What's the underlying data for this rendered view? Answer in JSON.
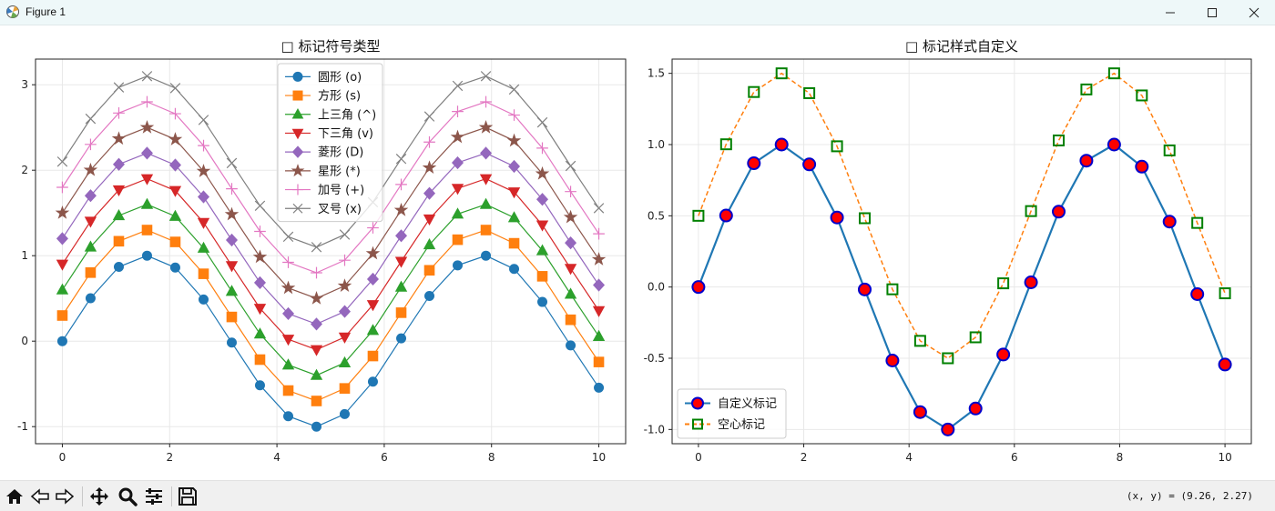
{
  "window": {
    "title": "Figure 1"
  },
  "toolbar": {
    "coords": "(x, y) = (9.26, 2.27)",
    "buttons": [
      "home",
      "back",
      "forward",
      "pan",
      "zoom",
      "configure",
      "save"
    ]
  },
  "colors": {
    "c0": "#1f77b4",
    "c1": "#ff7f0e",
    "c2": "#2ca02c",
    "c3": "#d62728",
    "c4": "#9467bd",
    "c5": "#8c564b",
    "c6": "#e377c2",
    "c7": "#7f7f7f",
    "custom_face": "#ff0000",
    "custom_edge": "#0000cc",
    "hollow_edge": "#008000",
    "grid": "#e8e8e8"
  },
  "chart_data": [
    {
      "type": "line",
      "title": "□ 标记符号类型",
      "x": [
        0,
        0.526,
        1.053,
        1.579,
        2.105,
        2.632,
        3.158,
        3.684,
        4.211,
        4.737,
        5.263,
        5.789,
        6.316,
        6.842,
        7.368,
        7.895,
        8.421,
        8.947,
        9.474,
        10
      ],
      "base": [
        0,
        0.502,
        0.869,
        1.0,
        0.861,
        0.488,
        -0.017,
        -0.516,
        -0.878,
        -1.0,
        -0.853,
        -0.474,
        0.033,
        0.529,
        0.887,
        1.0,
        0.845,
        0.459,
        -0.05,
        -0.544
      ],
      "xlim": [
        -0.5,
        10.5
      ],
      "ylim": [
        -1.2,
        3.3
      ],
      "xticks": [
        "0",
        "2",
        "4",
        "6",
        "8",
        "10"
      ],
      "xtick_values": [
        0,
        2,
        4,
        6,
        8,
        10
      ],
      "yticks": [
        "-1",
        "0",
        "1",
        "2",
        "3"
      ],
      "ytick_values": [
        -1,
        0,
        1,
        2,
        3
      ],
      "legend_loc": "upper center",
      "series": [
        {
          "name": "圆形 (o)",
          "marker": "o",
          "offset": 0.0,
          "color": "#1f77b4"
        },
        {
          "name": "方形 (s)",
          "marker": "s",
          "offset": 0.3,
          "color": "#ff7f0e"
        },
        {
          "name": "上三角 (^)",
          "marker": "^",
          "offset": 0.6,
          "color": "#2ca02c"
        },
        {
          "name": "下三角 (v)",
          "marker": "v",
          "offset": 0.9,
          "color": "#d62728"
        },
        {
          "name": "菱形 (D)",
          "marker": "D",
          "offset": 1.2,
          "color": "#9467bd"
        },
        {
          "name": "星形 (*)",
          "marker": "*",
          "offset": 1.5,
          "color": "#8c564b"
        },
        {
          "name": "加号 (+)",
          "marker": "+",
          "offset": 1.8,
          "color": "#e377c2"
        },
        {
          "name": "叉号 (x)",
          "marker": "x",
          "offset": 2.1,
          "color": "#7f7f7f"
        }
      ]
    },
    {
      "type": "line",
      "title": "□ 标记样式自定义",
      "x": [
        0,
        0.526,
        1.053,
        1.579,
        2.105,
        2.632,
        3.158,
        3.684,
        4.211,
        4.737,
        5.263,
        5.789,
        6.316,
        6.842,
        7.368,
        7.895,
        8.421,
        8.947,
        9.474,
        10
      ],
      "base": [
        0,
        0.502,
        0.869,
        1.0,
        0.861,
        0.488,
        -0.017,
        -0.516,
        -0.878,
        -1.0,
        -0.853,
        -0.474,
        0.033,
        0.529,
        0.887,
        1.0,
        0.845,
        0.459,
        -0.05,
        -0.544
      ],
      "xlim": [
        -0.5,
        10.5
      ],
      "ylim": [
        -1.1,
        1.6
      ],
      "xticks": [
        "0",
        "2",
        "4",
        "6",
        "8",
        "10"
      ],
      "xtick_values": [
        0,
        2,
        4,
        6,
        8,
        10
      ],
      "yticks": [
        "-1.0",
        "-0.5",
        "0.0",
        "0.5",
        "1.0",
        "1.5"
      ],
      "ytick_values": [
        -1.0,
        -0.5,
        0.0,
        0.5,
        1.0,
        1.5
      ],
      "legend_loc": "lower left",
      "series": [
        {
          "name": "自定义标记",
          "marker": "o",
          "offset": 0.0,
          "color": "#1f77b4",
          "linestyle": "solid",
          "face": "#ff0000",
          "edge": "#0000cc"
        },
        {
          "name": "空心标记",
          "marker": "s",
          "offset": 0.5,
          "color": "#ff7f0e",
          "linestyle": "dashed",
          "face": "none",
          "edge": "#008000"
        }
      ]
    }
  ]
}
